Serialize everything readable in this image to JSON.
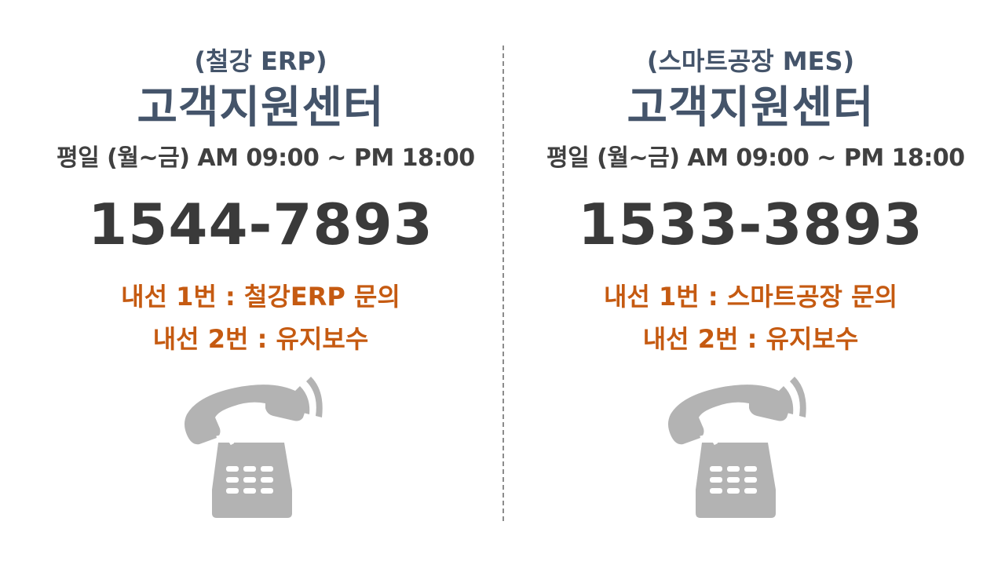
{
  "left": {
    "subtitle": "(철강 ERP)",
    "title": "고객지원센터",
    "hours": "평일 (월~금) AM 09:00 ~ PM 18:00",
    "phone": "1544-7893",
    "ext1": "내선 1번 : 철강ERP 문의",
    "ext2": "내선 2번 : 유지보수",
    "icon": "telephone-icon"
  },
  "right": {
    "subtitle": "(스마트공장 MES)",
    "title": "고객지원센터",
    "hours": "평일 (월~금) AM 09:00 ~ PM 18:00",
    "phone": "1533-3893",
    "ext1": "내선 1번 : 스마트공장 문의",
    "ext2": "내선 2번 : 유지보수",
    "icon": "telephone-icon"
  },
  "colors": {
    "heading": "#44546a",
    "text": "#404040",
    "extension": "#c55a11",
    "icon": "#b3b3b3"
  }
}
